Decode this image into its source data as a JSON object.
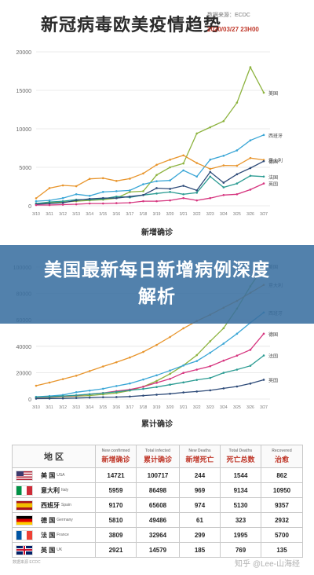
{
  "header": {
    "title": "新冠病毒欧美疫情趋势",
    "source": "数据来源：ECDC",
    "date": "2020/03/27 23H00"
  },
  "overlay": {
    "headline": "美国最新每日新增病例深度解析"
  },
  "chart_data": [
    {
      "type": "line",
      "title": "新增确诊",
      "categories": [
        "3/10",
        "3/11",
        "3/12",
        "3/13",
        "3/14",
        "3/15",
        "3/16",
        "3/17",
        "3/18",
        "3/19",
        "3/20",
        "3/21",
        "3/22",
        "3/23",
        "3/24",
        "3/25",
        "3/26",
        "3/27"
      ],
      "ylim": [
        0,
        20000
      ],
      "yticks": [
        "0",
        "5000",
        "10000",
        "15000",
        "20000"
      ],
      "grid": true,
      "series": [
        {
          "name": "美国",
          "color": "#8db33f",
          "values": [
            300,
            400,
            500,
            600,
            700,
            800,
            1000,
            1800,
            1900,
            4000,
            5000,
            5500,
            9400,
            10200,
            11000,
            13400,
            18000,
            14700
          ]
        },
        {
          "name": "西班牙",
          "color": "#3aa6d6",
          "values": [
            600,
            700,
            1000,
            1500,
            1300,
            1800,
            1900,
            2000,
            2800,
            3200,
            3300,
            4600,
            3800,
            6000,
            6500,
            7200,
            8500,
            9200
          ]
        },
        {
          "name": "意大利",
          "color": "#e8952c",
          "values": [
            977,
            2300,
            2651,
            2547,
            3497,
            3590,
            3233,
            3526,
            4207,
            5322,
            5986,
            6557,
            5560,
            4789,
            5249,
            5210,
            6203,
            5959
          ]
        },
        {
          "name": "法国",
          "color": "#2c9c93",
          "values": [
            300,
            500,
            600,
            800,
            800,
            900,
            1200,
            1100,
            1400,
            1600,
            1800,
            1500,
            1700,
            3800,
            2400,
            2900,
            3900,
            3800
          ]
        },
        {
          "name": "德国",
          "color": "#2d4a78",
          "values": [
            200,
            300,
            400,
            700,
            900,
            1000,
            1000,
            1200,
            1400,
            2300,
            2200,
            2600,
            2000,
            4400,
            3000,
            4100,
            4900,
            5800
          ]
        },
        {
          "name": "英国",
          "color": "#d6357f",
          "values": [
            100,
            100,
            150,
            200,
            300,
            300,
            350,
            400,
            600,
            600,
            700,
            1000,
            700,
            1000,
            1400,
            1500,
            2100,
            2900
          ]
        }
      ]
    },
    {
      "type": "line",
      "title": "累计确诊",
      "categories": [
        "3/10",
        "3/11",
        "3/12",
        "3/13",
        "3/14",
        "3/15",
        "3/16",
        "3/17",
        "3/18",
        "3/19",
        "3/20",
        "3/21",
        "3/22",
        "3/23",
        "3/24",
        "3/25",
        "3/26",
        "3/27"
      ],
      "ylim": [
        0,
        100000
      ],
      "yticks": [
        "0",
        "20000",
        "40000",
        "60000",
        "80000",
        "100000"
      ],
      "grid": true,
      "series": [
        {
          "name": "美国",
          "color": "#8db33f",
          "values": [
            1000,
            1300,
            1700,
            2200,
            2700,
            3500,
            4600,
            6400,
            9400,
            13700,
            19100,
            25500,
            33300,
            43800,
            53700,
            68500,
            85400,
            100700
          ]
        },
        {
          "name": "意大利",
          "color": "#e8952c",
          "values": [
            10100,
            12500,
            15100,
            17700,
            21200,
            24700,
            27900,
            31500,
            35700,
            41000,
            47000,
            53600,
            59100,
            63900,
            69200,
            74400,
            80500,
            86500
          ]
        },
        {
          "name": "西班牙",
          "color": "#3aa6d6",
          "values": [
            1700,
            2300,
            3100,
            5200,
            6400,
            7800,
            9900,
            11800,
            14800,
            18000,
            21600,
            25400,
            28800,
            35100,
            42000,
            49500,
            57800,
            65600
          ]
        },
        {
          "name": "德国",
          "color": "#d6357f",
          "values": [
            1200,
            1600,
            2100,
            2700,
            3700,
            4600,
            6000,
            7200,
            9300,
            12300,
            15300,
            19800,
            22300,
            24900,
            29100,
            32900,
            37300,
            49500
          ]
        },
        {
          "name": "法国",
          "color": "#2c9c93",
          "values": [
            1400,
            1800,
            2300,
            2900,
            3700,
            4500,
            5400,
            6600,
            7700,
            9100,
            10900,
            12600,
            14500,
            16000,
            19900,
            22300,
            25200,
            33000
          ]
        },
        {
          "name": "英国",
          "color": "#2d4a78",
          "values": [
            300,
            400,
            500,
            800,
            1100,
            1400,
            1500,
            1900,
            2600,
            3300,
            4000,
            5000,
            5700,
            6600,
            8100,
            9500,
            11700,
            14600
          ]
        }
      ]
    },
    {
      "type": "table",
      "columns": [
        {
          "label": "地 区",
          "sub": ""
        },
        {
          "label": "新增确诊",
          "sub": "New confirmed"
        },
        {
          "label": "累计确诊",
          "sub": "Total infected"
        },
        {
          "label": "新增死亡",
          "sub": "New Deaths"
        },
        {
          "label": "死亡总数",
          "sub": "Total Deaths"
        },
        {
          "label": "治愈",
          "sub": "Recovered"
        }
      ],
      "rows": [
        {
          "cn": "美 国",
          "en": "USA",
          "flag": "us",
          "new": "14721",
          "total": "100717",
          "new_deaths": "244",
          "deaths": "1544",
          "recovered": "862"
        },
        {
          "cn": "意大利",
          "en": "Italy",
          "flag": "it",
          "new": "5959",
          "total": "86498",
          "new_deaths": "969",
          "deaths": "9134",
          "recovered": "10950"
        },
        {
          "cn": "西班牙",
          "en": "Spain",
          "flag": "es",
          "new": "9170",
          "total": "65608",
          "new_deaths": "974",
          "deaths": "5130",
          "recovered": "9357"
        },
        {
          "cn": "德 国",
          "en": "Germany",
          "flag": "de",
          "new": "5810",
          "total": "49486",
          "new_deaths": "61",
          "deaths": "323",
          "recovered": "2932"
        },
        {
          "cn": "法 国",
          "en": "France",
          "flag": "fr",
          "new": "3809",
          "total": "32964",
          "new_deaths": "299",
          "deaths": "1995",
          "recovered": "5700"
        },
        {
          "cn": "英 国",
          "en": "UK",
          "flag": "uk",
          "new": "2921",
          "total": "14579",
          "new_deaths": "185",
          "deaths": "769",
          "recovered": "135"
        }
      ]
    }
  ],
  "footer": {
    "watermark": "知乎 @Lee-山海经",
    "left_note": "数据来源 ECDC"
  }
}
